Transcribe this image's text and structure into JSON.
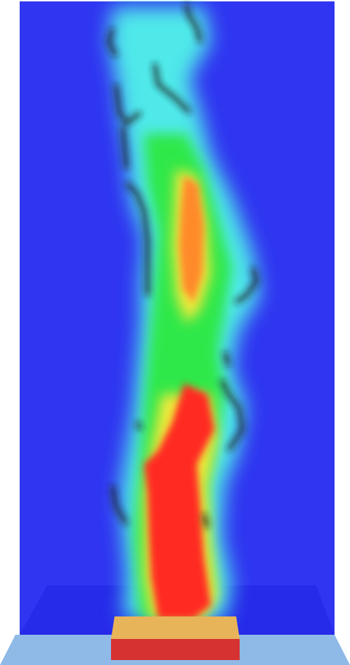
{
  "scene": {
    "description_free": true,
    "colors": {
      "background": "#ffffff",
      "domain": "#2f35f0",
      "floor_shadow": "#2b2fe6",
      "ground": "#8fb9e6",
      "source_top": "#e7b45a",
      "source_front": "#d63232",
      "contour_line": "#1c1c1c",
      "field_red": "#ff2a22",
      "field_orange": "#ff8a2a",
      "field_yellow": "#f2e83a",
      "field_green": "#2ee84a",
      "field_cyan": "#4fe9ea"
    },
    "colormap": "blue-cyan-green-yellow-red",
    "icons": {
      "heat_source": "box-icon"
    }
  }
}
